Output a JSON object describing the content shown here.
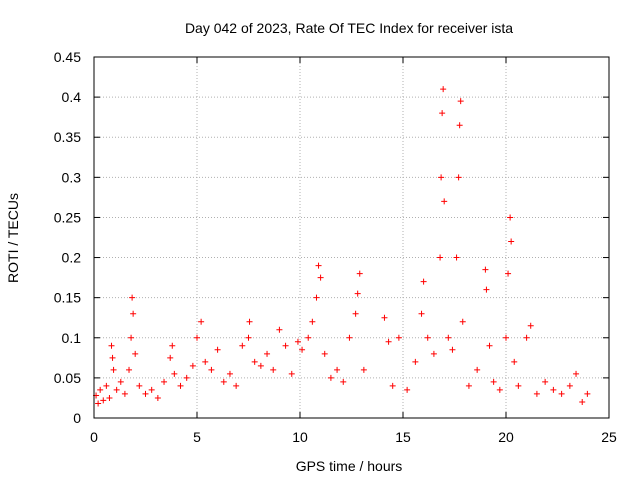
{
  "chart_data": {
    "type": "scatter",
    "title": "Day 042 of 2023, Rate Of TEC Index for receiver ista",
    "xlabel": "GPS time / hours",
    "ylabel": "ROTI / TECUs",
    "xlim": [
      0,
      25
    ],
    "ylim": [
      0,
      0.45
    ],
    "xticks": [
      0,
      5,
      10,
      15,
      20,
      25
    ],
    "xtick_labels": [
      "0",
      "5",
      "10",
      "15",
      "20",
      "25"
    ],
    "yticks": [
      0,
      0.05,
      0.1,
      0.15,
      0.2,
      0.25,
      0.3,
      0.35,
      0.4,
      0.45
    ],
    "ytick_labels": [
      "0",
      "0.05",
      "0.1",
      "0.15",
      "0.2",
      "0.25",
      "0.3",
      "0.35",
      "0.4",
      "0.45"
    ],
    "grid": true,
    "marker": "+",
    "color": "#ff0000",
    "series": [
      {
        "name": "ROTI",
        "points": [
          [
            0.1,
            0.028
          ],
          [
            0.2,
            0.018
          ],
          [
            0.3,
            0.035
          ],
          [
            0.45,
            0.022
          ],
          [
            0.6,
            0.04
          ],
          [
            0.75,
            0.025
          ],
          [
            0.85,
            0.09
          ],
          [
            0.9,
            0.075
          ],
          [
            0.95,
            0.06
          ],
          [
            1.1,
            0.035
          ],
          [
            1.3,
            0.045
          ],
          [
            1.5,
            0.03
          ],
          [
            1.7,
            0.06
          ],
          [
            1.8,
            0.1
          ],
          [
            1.85,
            0.15
          ],
          [
            1.9,
            0.13
          ],
          [
            2.0,
            0.08
          ],
          [
            2.2,
            0.04
          ],
          [
            2.5,
            0.03
          ],
          [
            2.8,
            0.035
          ],
          [
            3.1,
            0.025
          ],
          [
            3.4,
            0.045
          ],
          [
            3.7,
            0.075
          ],
          [
            3.8,
            0.09
          ],
          [
            3.9,
            0.055
          ],
          [
            4.2,
            0.04
          ],
          [
            4.5,
            0.05
          ],
          [
            4.8,
            0.065
          ],
          [
            5.0,
            0.1
          ],
          [
            5.2,
            0.12
          ],
          [
            5.4,
            0.07
          ],
          [
            5.7,
            0.06
          ],
          [
            6.0,
            0.085
          ],
          [
            6.3,
            0.045
          ],
          [
            6.6,
            0.055
          ],
          [
            6.9,
            0.04
          ],
          [
            7.2,
            0.09
          ],
          [
            7.5,
            0.1
          ],
          [
            7.55,
            0.12
          ],
          [
            7.8,
            0.07
          ],
          [
            8.1,
            0.065
          ],
          [
            8.4,
            0.08
          ],
          [
            8.7,
            0.06
          ],
          [
            9.0,
            0.11
          ],
          [
            9.3,
            0.09
          ],
          [
            9.6,
            0.055
          ],
          [
            9.9,
            0.095
          ],
          [
            10.1,
            0.085
          ],
          [
            10.4,
            0.1
          ],
          [
            10.6,
            0.12
          ],
          [
            10.8,
            0.15
          ],
          [
            10.9,
            0.19
          ],
          [
            11.0,
            0.175
          ],
          [
            11.2,
            0.08
          ],
          [
            11.5,
            0.05
          ],
          [
            11.8,
            0.06
          ],
          [
            12.1,
            0.045
          ],
          [
            12.4,
            0.1
          ],
          [
            12.7,
            0.13
          ],
          [
            12.8,
            0.155
          ],
          [
            12.9,
            0.18
          ],
          [
            13.1,
            0.06
          ],
          [
            14.1,
            0.125
          ],
          [
            14.3,
            0.095
          ],
          [
            14.5,
            0.04
          ],
          [
            14.8,
            0.1
          ],
          [
            15.2,
            0.035
          ],
          [
            15.6,
            0.07
          ],
          [
            15.9,
            0.13
          ],
          [
            16.0,
            0.17
          ],
          [
            16.2,
            0.1
          ],
          [
            16.5,
            0.08
          ],
          [
            16.8,
            0.2
          ],
          [
            16.85,
            0.3
          ],
          [
            16.9,
            0.38
          ],
          [
            16.95,
            0.41
          ],
          [
            17.0,
            0.27
          ],
          [
            17.2,
            0.1
          ],
          [
            17.4,
            0.085
          ],
          [
            17.6,
            0.2
          ],
          [
            17.7,
            0.3
          ],
          [
            17.75,
            0.365
          ],
          [
            17.8,
            0.395
          ],
          [
            17.9,
            0.12
          ],
          [
            18.2,
            0.04
          ],
          [
            18.6,
            0.06
          ],
          [
            19.0,
            0.185
          ],
          [
            19.05,
            0.16
          ],
          [
            19.2,
            0.09
          ],
          [
            19.4,
            0.045
          ],
          [
            19.7,
            0.035
          ],
          [
            20.0,
            0.1
          ],
          [
            20.1,
            0.18
          ],
          [
            20.2,
            0.25
          ],
          [
            20.25,
            0.22
          ],
          [
            20.4,
            0.07
          ],
          [
            20.6,
            0.04
          ],
          [
            21.0,
            0.1
          ],
          [
            21.2,
            0.115
          ],
          [
            21.5,
            0.03
          ],
          [
            21.9,
            0.045
          ],
          [
            22.3,
            0.035
          ],
          [
            22.7,
            0.03
          ],
          [
            23.1,
            0.04
          ],
          [
            23.4,
            0.055
          ],
          [
            23.7,
            0.02
          ],
          [
            23.95,
            0.03
          ]
        ]
      }
    ]
  }
}
